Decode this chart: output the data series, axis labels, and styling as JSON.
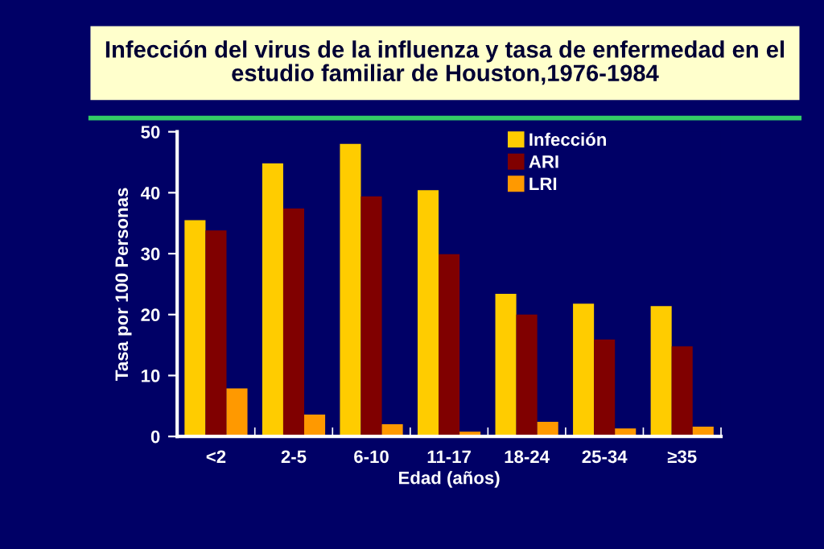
{
  "chart_data": {
    "type": "bar",
    "title": "Infección del virus de la influenza y tasa de enfermedad en el estudio familiar de Houston,1976-1984",
    "xlabel": "Edad (años)",
    "ylabel": "Tasa por 100 Personas",
    "categories": [
      "<2",
      "2-5",
      "6-10",
      "11-17",
      "18-24",
      "25-34",
      "≥35"
    ],
    "series": [
      {
        "name": "Infección",
        "color": "#ffcc00",
        "values": [
          35.5,
          44.8,
          48.0,
          40.4,
          23.4,
          21.8,
          21.4
        ]
      },
      {
        "name": "ARI",
        "color": "#800000",
        "values": [
          33.8,
          37.4,
          39.4,
          29.9,
          20.0,
          15.9,
          14.8
        ]
      },
      {
        "name": "LRI",
        "color": "#ff9900",
        "values": [
          7.9,
          3.6,
          2.0,
          0.8,
          2.4,
          1.3,
          1.6
        ]
      }
    ],
    "ylim": [
      0,
      50
    ],
    "yticks": [
      0,
      10,
      20,
      30,
      40,
      50
    ],
    "grid": false,
    "legend": "top right"
  }
}
